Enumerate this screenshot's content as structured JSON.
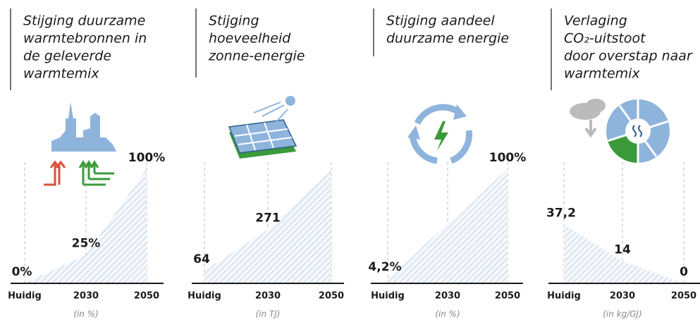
{
  "chart_data": [
    {
      "type": "area",
      "title": [
        "Stijging duurzame",
        "warmtebronnen in",
        "de geleverde",
        "warmtemix"
      ],
      "categories": [
        "Huidig",
        "2030",
        "2050"
      ],
      "values": [
        0,
        25,
        100
      ],
      "value_labels": [
        "0%",
        "25%",
        "100%"
      ],
      "unit": "(in %)",
      "ylim": [
        0,
        100
      ],
      "color": "#9fbbd8"
    },
    {
      "type": "area",
      "title": [
        "Stijging",
        "hoeveelheid",
        "zonne-energie"
      ],
      "categories": [
        "Huidig",
        "2030",
        "2050"
      ],
      "values": [
        64,
        271,
        575
      ],
      "value_labels": [
        "64",
        "271",
        null
      ],
      "unit": "(in TJ)",
      "ylim": [
        0,
        575
      ],
      "color": "#9fbbd8"
    },
    {
      "type": "area",
      "title": [
        "Stijging aandeel",
        "duurzame energie"
      ],
      "categories": [
        "Huidig",
        "2030",
        "2050"
      ],
      "values": [
        4.2,
        null,
        100
      ],
      "value_labels": [
        "4,2%",
        null,
        "100%"
      ],
      "unit": "(in %)",
      "ylim": [
        0,
        100
      ],
      "color": "#9fbbd8"
    },
    {
      "type": "area",
      "title": [
        "Verlaging",
        "CO₂-uitstoot",
        "door overstap naar",
        "warmtemix"
      ],
      "categories": [
        "Huidig",
        "2030",
        "2050"
      ],
      "values": [
        37.2,
        14,
        0
      ],
      "value_labels": [
        "37,2",
        "14",
        "0"
      ],
      "unit": "(in kg/GJ)",
      "ylim": [
        0,
        72
      ],
      "color": "#9fbbd8"
    }
  ]
}
